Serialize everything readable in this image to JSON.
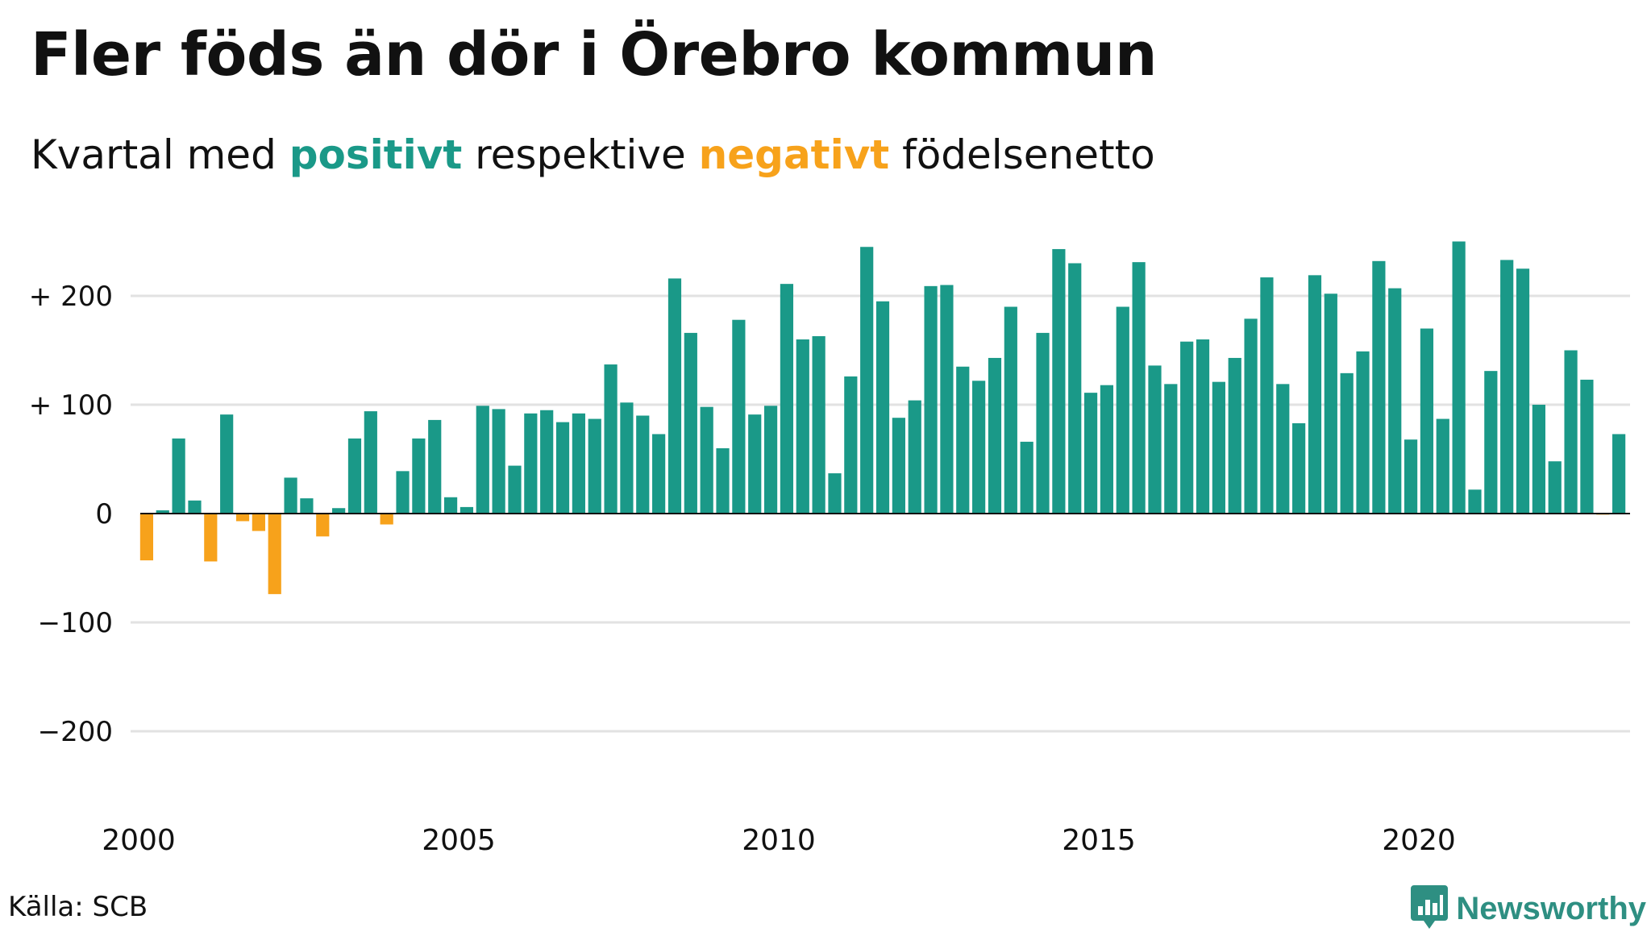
{
  "title": "Fler föds än dör i Örebro kommun",
  "subtitle": {
    "prefix": "Kvartal med ",
    "positive": "positivt",
    "middle": " respektive ",
    "negative": "negativt",
    "suffix": " födelsenetto"
  },
  "source": "Källa: SCB",
  "brand": "Newsworthy",
  "colors": {
    "positive": "#1a9988",
    "negative": "#f7a21b",
    "grid": "#e2e2e2",
    "zero": "#111111",
    "brand": "#2e8f82"
  },
  "icons": {
    "brand": "bar-chart-speech-bubble-icon"
  },
  "chart_data": {
    "type": "bar",
    "title": "Fler föds än dör i Örebro kommun",
    "subtitle": "Kvartal med positivt respektive negativt födelsenetto",
    "xlabel": "",
    "ylabel": "",
    "frequency": "quarterly",
    "start": "2000 Q1",
    "x_ticks": [
      "2000",
      "2005",
      "2010",
      "2015",
      "2020"
    ],
    "y_ticks": [
      {
        "value": 200,
        "label": "+ 200"
      },
      {
        "value": 100,
        "label": "+ 100"
      },
      {
        "value": 0,
        "label": "0"
      },
      {
        "value": -100,
        "label": "−100"
      },
      {
        "value": -200,
        "label": "−200"
      }
    ],
    "ylim": [
      -270,
      270
    ],
    "grid": true,
    "legend": "none",
    "values": [
      -43,
      3,
      69,
      12,
      -44,
      91,
      -7,
      -16,
      -74,
      33,
      14,
      -21,
      5,
      69,
      94,
      -10,
      39,
      69,
      86,
      15,
      6,
      99,
      96,
      44,
      92,
      95,
      84,
      92,
      87,
      137,
      102,
      90,
      73,
      216,
      166,
      98,
      60,
      178,
      91,
      99,
      211,
      160,
      163,
      37,
      126,
      245,
      195,
      88,
      104,
      209,
      210,
      135,
      122,
      143,
      190,
      66,
      166,
      243,
      230,
      111,
      118,
      190,
      231,
      136,
      119,
      158,
      160,
      121,
      143,
      179,
      217,
      119,
      83,
      219,
      202,
      129,
      149,
      232,
      207,
      68,
      170,
      87,
      250,
      22,
      131,
      233,
      225,
      100,
      48,
      150,
      123,
      -1,
      73
    ]
  }
}
